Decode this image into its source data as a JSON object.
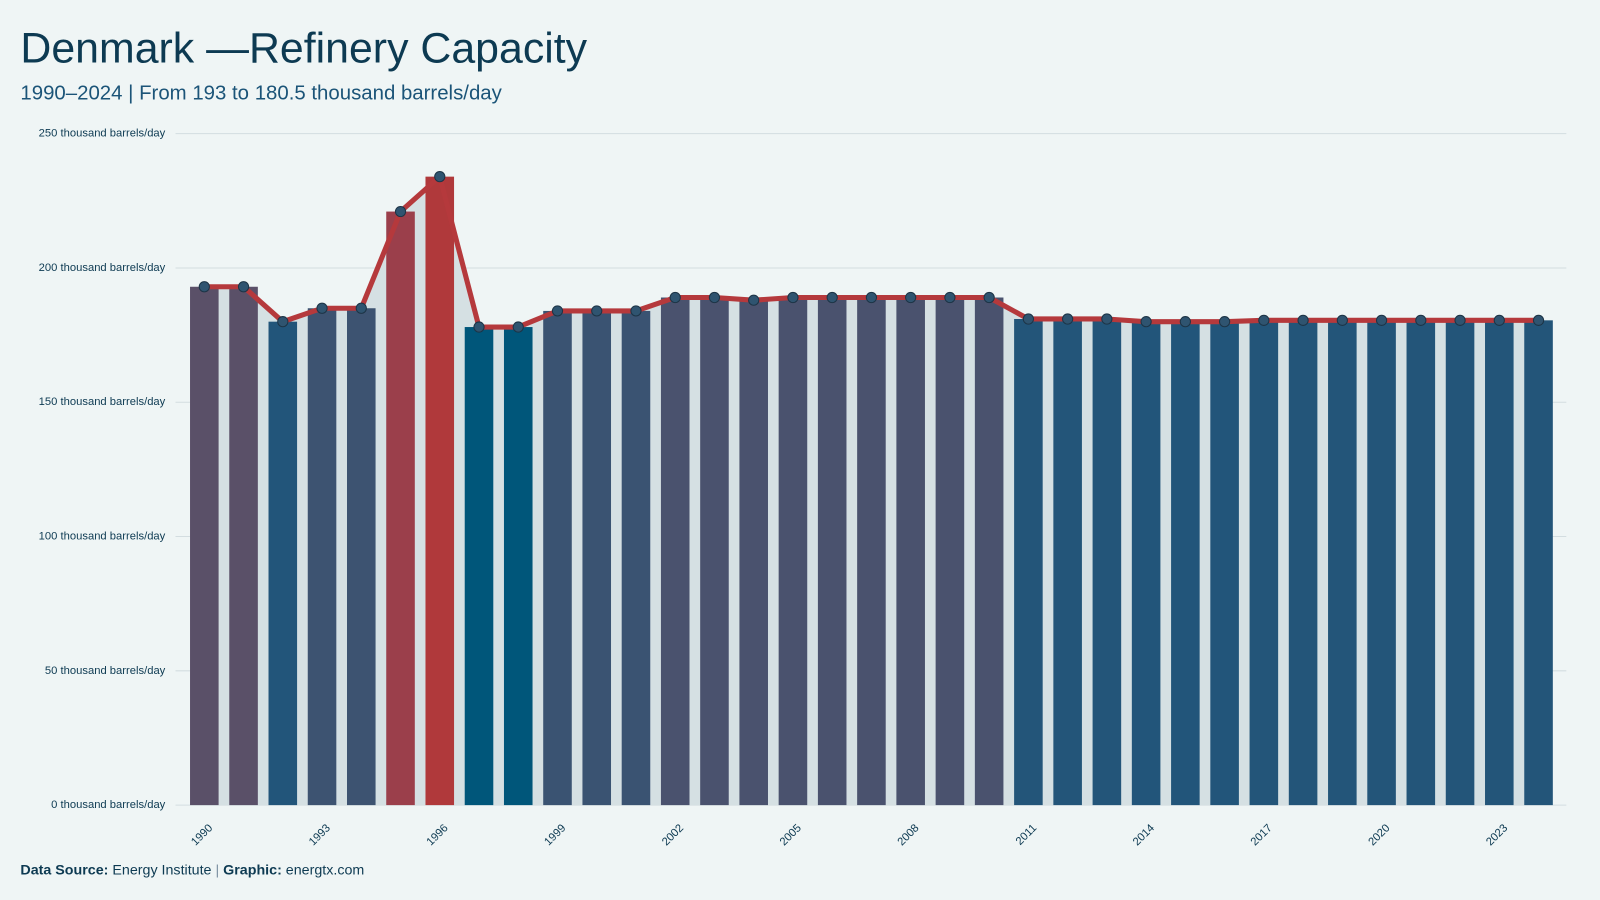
{
  "chart_data": {
    "type": "bar",
    "title": "Denmark —Refinery Capacity",
    "subtitle": "1990–2024 | From 193 to 180.5  thousand barrels/day",
    "x": [
      1990,
      1991,
      1992,
      1993,
      1994,
      1995,
      1996,
      1997,
      1998,
      1999,
      2000,
      2001,
      2002,
      2003,
      2004,
      2005,
      2006,
      2007,
      2008,
      2009,
      2010,
      2011,
      2012,
      2013,
      2014,
      2015,
      2016,
      2017,
      2018,
      2019,
      2020,
      2021,
      2022,
      2023,
      2024
    ],
    "values": [
      193,
      193,
      180,
      185,
      185,
      221,
      234,
      178,
      178,
      184,
      184,
      184,
      189,
      189,
      188,
      189,
      189,
      189,
      189,
      189,
      189,
      181,
      181,
      181,
      180,
      180,
      180,
      180.5,
      180.5,
      180.5,
      180.5,
      180.5,
      180.5,
      180.5,
      180.5
    ],
    "colors": [
      "#5a5068",
      "#5a5068",
      "#22557a",
      "#3d5371",
      "#3d5371",
      "#9b3f4b",
      "#b0393b",
      "#00567a",
      "#00567a",
      "#3a5372",
      "#3a5372",
      "#3a5372",
      "#4a526e",
      "#4a526e",
      "#4a526e",
      "#4a526e",
      "#4a526e",
      "#4a526e",
      "#4a526e",
      "#4a526e",
      "#4a526e",
      "#235579",
      "#235579",
      "#235579",
      "#22557a",
      "#22557a",
      "#22557a",
      "#235579",
      "#235579",
      "#235579",
      "#235579",
      "#235579",
      "#235579",
      "#235579",
      "#235579"
    ],
    "line_color": "#b5393c",
    "marker_color": "#2f5470",
    "area_color": "#d5e0e3",
    "xlim": [
      1989.5,
      2024.5
    ],
    "xticks": [
      1990,
      1993,
      1996,
      1999,
      2002,
      2005,
      2008,
      2011,
      2014,
      2017,
      2020,
      2023
    ],
    "ylim": [
      0,
      250
    ],
    "yticks": [
      {
        "value": 0,
        "label": "0 thousand barrels/day"
      },
      {
        "value": 50,
        "label": "50 thousand barrels/day"
      },
      {
        "value": 100,
        "label": "100 thousand barrels/day"
      },
      {
        "value": 150,
        "label": "150 thousand barrels/day"
      },
      {
        "value": 200,
        "label": "200 thousand barrels/day"
      },
      {
        "value": 250,
        "label": "250 thousand barrels/day"
      }
    ],
    "grid": true,
    "footer": {
      "source_label": "Data Source:",
      "source": "Energy Institute",
      "separator": "|",
      "graphic_label": "Graphic:",
      "graphic": "energtx.com"
    }
  }
}
